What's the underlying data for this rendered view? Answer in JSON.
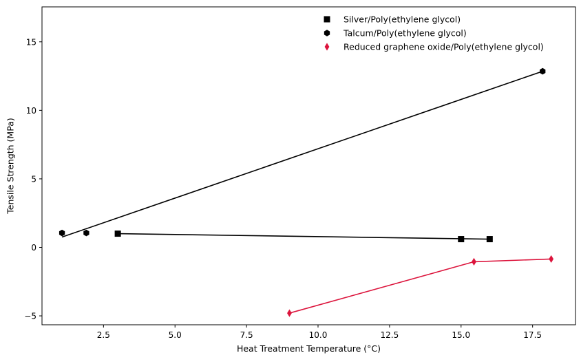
{
  "chart_data": {
    "type": "scatter",
    "title": "",
    "xlabel": "Heat Treatment Temperature (°C)",
    "ylabel": "Tensile Strength (MPa)",
    "xlim": [
      0.35,
      19.0
    ],
    "ylim": [
      -5.65,
      17.55
    ],
    "xticks": [
      2.5,
      5.0,
      7.5,
      10.0,
      12.5,
      15.0,
      17.5
    ],
    "xtick_labels": [
      "2.5",
      "5.0",
      "7.5",
      "10.0",
      "12.5",
      "15.0",
      "17.5"
    ],
    "yticks": [
      -5,
      0,
      5,
      10,
      15
    ],
    "ytick_labels": [
      "−5",
      "0",
      "5",
      "10",
      "15"
    ],
    "grid": false,
    "legend_position": "top-right",
    "series": [
      {
        "name": "Silver/Poly(ethylene glycol)",
        "marker": "square",
        "color": "#000000",
        "x": [
          3.0,
          15.0,
          16.0
        ],
        "y": [
          1.0,
          0.6,
          0.6
        ],
        "fit_line": {
          "x": [
            3.0,
            16.0
          ],
          "y": [
            1.0,
            0.6
          ]
        }
      },
      {
        "name": "Talcum/Poly(ethylene glycol)",
        "marker": "hexagon",
        "color": "#000000",
        "x": [
          1.05,
          1.9,
          17.85
        ],
        "y": [
          1.05,
          1.05,
          12.85
        ],
        "fit_line": {
          "x": [
            1.05,
            17.85
          ],
          "y": [
            0.75,
            12.85
          ]
        }
      },
      {
        "name": "Reduced graphene oxide/Poly(ethylene glycol)",
        "marker": "thin-diamond",
        "color": "#dc143c",
        "x": [
          9.0,
          15.45,
          18.15
        ],
        "y": [
          -4.8,
          -1.05,
          -0.85
        ],
        "fit_line": {
          "x": [
            9.0,
            15.45,
            18.15
          ],
          "y": [
            -4.8,
            -1.05,
            -0.85
          ]
        }
      }
    ]
  }
}
